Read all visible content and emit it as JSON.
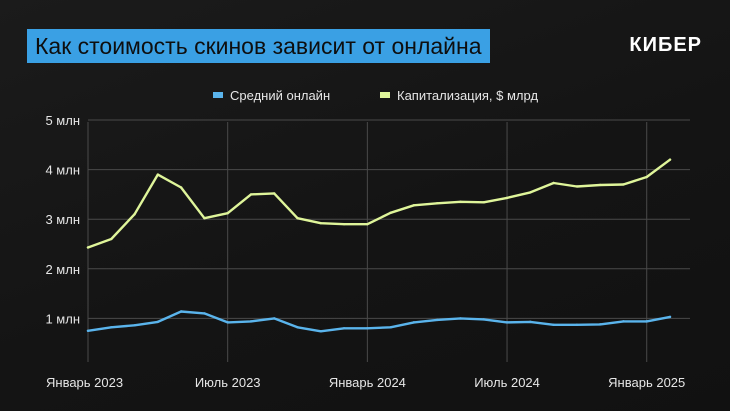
{
  "header": {
    "title": "Как стоимость скинов зависит от онлайна",
    "brand": "КИБЕР"
  },
  "colors": {
    "accent_blue": "#3aa0e4",
    "online_line": "#5ab4ec",
    "cap_line": "#dff59a",
    "grid": "#4a4a4a",
    "text": "#e6e6e6"
  },
  "chart_data": {
    "type": "line",
    "title": "Как стоимость скинов зависит от онлайна",
    "xlabel": "",
    "ylabel": "",
    "ylim": [
      0,
      5
    ],
    "y_ticks": [
      1,
      2,
      3,
      4,
      5
    ],
    "y_tick_labels": [
      "1 млн",
      "2 млн",
      "3 млн",
      "4 млн",
      "5 млн"
    ],
    "x_ticks": [
      0,
      6,
      12,
      18,
      24
    ],
    "x_tick_labels": [
      "Январь 2023",
      "Июль 2023",
      "Январь 2024",
      "Июль 2024",
      "Январь 2025"
    ],
    "x": [
      0,
      1,
      2,
      3,
      4,
      5,
      6,
      7,
      8,
      9,
      10,
      11,
      12,
      13,
      14,
      15,
      16,
      17,
      18,
      19,
      20,
      21,
      22,
      23,
      24,
      25
    ],
    "legend_position": "top-center",
    "grid": true,
    "series": [
      {
        "name": "Средний онлайн",
        "values": [
          0.75,
          0.82,
          0.86,
          0.93,
          1.14,
          1.1,
          0.92,
          0.94,
          1.0,
          0.82,
          0.74,
          0.8,
          0.8,
          0.82,
          0.92,
          0.97,
          1.0,
          0.98,
          0.92,
          0.93,
          0.87,
          0.87,
          0.88,
          0.94,
          0.94,
          1.03
        ],
        "color": "#5ab4ec"
      },
      {
        "name": "Капитализация, $ млрд",
        "values": [
          2.43,
          2.6,
          3.1,
          3.9,
          3.64,
          3.02,
          3.12,
          3.5,
          3.52,
          3.02,
          2.92,
          2.9,
          2.9,
          3.13,
          3.28,
          3.32,
          3.35,
          3.34,
          3.43,
          3.54,
          3.73,
          3.66,
          3.69,
          3.7,
          3.85,
          4.2
        ],
        "color": "#dff59a"
      }
    ]
  }
}
